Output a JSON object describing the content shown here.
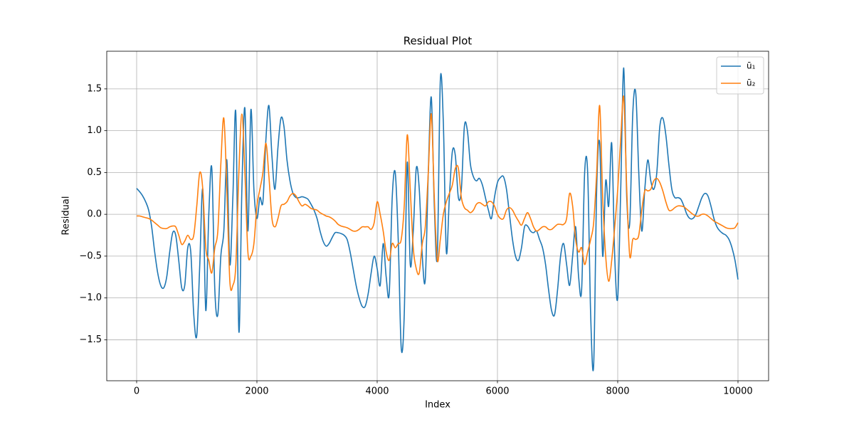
{
  "chart_data": {
    "type": "line",
    "title": "Residual Plot",
    "x_label": "Index",
    "y_label": "Residual",
    "xlim": [
      -497,
      10509
    ],
    "ylim": [
      -1.99,
      1.95
    ],
    "xticks": [
      0,
      2000,
      4000,
      6000,
      8000,
      10000
    ],
    "yticks": [
      {
        "value": -1.5,
        "label": "−1.5"
      },
      {
        "value": -1.0,
        "label": "−1.0"
      },
      {
        "value": -0.5,
        "label": "−0.5"
      },
      {
        "value": 0,
        "label": "0.0"
      },
      0.5,
      {
        "value": 1.0,
        "label": "1.0"
      },
      1.5
    ],
    "grid": true,
    "legend": "upper right",
    "x": [
      0,
      50,
      100,
      150,
      200,
      250,
      300,
      350,
      400,
      450,
      500,
      550,
      600,
      650,
      700,
      750,
      800,
      850,
      900,
      950,
      1000,
      1050,
      1100,
      1150,
      1200,
      1250,
      1300,
      1350,
      1400,
      1450,
      1500,
      1550,
      1600,
      1650,
      1700,
      1750,
      1800,
      1850,
      1900,
      1950,
      2000,
      2050,
      2100,
      2150,
      2200,
      2250,
      2300,
      2350,
      2400,
      2450,
      2500,
      2550,
      2600,
      2650,
      2700,
      2750,
      2800,
      2850,
      2900,
      2950,
      3000,
      3050,
      3100,
      3150,
      3200,
      3250,
      3300,
      3350,
      3400,
      3450,
      3500,
      3550,
      3600,
      3650,
      3700,
      3750,
      3800,
      3850,
      3900,
      3950,
      4000,
      4050,
      4100,
      4150,
      4200,
      4250,
      4300,
      4350,
      4400,
      4450,
      4500,
      4550,
      4600,
      4650,
      4700,
      4750,
      4800,
      4850,
      4900,
      4950,
      5000,
      5050,
      5100,
      5150,
      5200,
      5250,
      5300,
      5350,
      5400,
      5450,
      5500,
      5550,
      5600,
      5650,
      5700,
      5750,
      5800,
      5850,
      5900,
      5950,
      6000,
      6050,
      6100,
      6150,
      6200,
      6250,
      6300,
      6350,
      6400,
      6450,
      6500,
      6550,
      6600,
      6650,
      6700,
      6750,
      6800,
      6850,
      6900,
      6950,
      7000,
      7050,
      7100,
      7150,
      7200,
      7250,
      7300,
      7350,
      7400,
      7450,
      7500,
      7550,
      7600,
      7650,
      7700,
      7750,
      7800,
      7850,
      7900,
      7950,
      8000,
      8050,
      8100,
      8150,
      8200,
      8250,
      8300,
      8350,
      8400,
      8450,
      8500,
      8550,
      8600,
      8650,
      8700,
      8750,
      8800,
      8850,
      8900,
      8950,
      9000,
      9050,
      9100,
      9150,
      9200,
      9250,
      9300,
      9350,
      9400,
      9450,
      9500,
      9550,
      9600,
      9650,
      9700,
      9750,
      9800,
      9850,
      9900,
      9950,
      10000
    ],
    "series": [
      {
        "name": "ū₁",
        "color": "#1f77b4",
        "values": [
          0.31,
          0.27,
          0.22,
          0.15,
          0.05,
          -0.15,
          -0.45,
          -0.7,
          -0.85,
          -0.88,
          -0.75,
          -0.45,
          -0.22,
          -0.25,
          -0.55,
          -0.88,
          -0.85,
          -0.4,
          -0.45,
          -1.2,
          -1.45,
          -0.6,
          0.3,
          -1.15,
          0.0,
          0.55,
          -0.9,
          -1.2,
          -0.5,
          -0.2,
          0.65,
          -0.6,
          0.2,
          1.2,
          -1.4,
          0.3,
          1.27,
          -0.2,
          1.25,
          0.3,
          -0.05,
          0.2,
          0.15,
          0.9,
          1.3,
          0.7,
          0.3,
          0.8,
          1.15,
          1.05,
          0.65,
          0.4,
          0.25,
          0.2,
          0.2,
          0.21,
          0.2,
          0.18,
          0.12,
          0.05,
          -0.05,
          -0.2,
          -0.32,
          -0.38,
          -0.35,
          -0.28,
          -0.22,
          -0.22,
          -0.23,
          -0.25,
          -0.3,
          -0.45,
          -0.65,
          -0.85,
          -1.0,
          -1.1,
          -1.1,
          -0.95,
          -0.7,
          -0.5,
          -0.65,
          -0.85,
          -0.35,
          -0.75,
          -0.95,
          0.2,
          0.5,
          -0.3,
          -1.6,
          -1.2,
          0.62,
          -0.6,
          -0.2,
          0.55,
          0.3,
          -0.5,
          -0.78,
          0.5,
          1.4,
          0.1,
          -0.5,
          1.6,
          1.1,
          -0.45,
          0.2,
          0.75,
          0.7,
          0.2,
          0.3,
          1.05,
          1.0,
          0.6,
          0.45,
          0.4,
          0.43,
          0.35,
          0.2,
          0.05,
          -0.05,
          0.2,
          0.38,
          0.44,
          0.45,
          0.3,
          0.0,
          -0.3,
          -0.5,
          -0.55,
          -0.4,
          -0.15,
          -0.14,
          -0.2,
          -0.22,
          -0.2,
          -0.3,
          -0.4,
          -0.6,
          -0.9,
          -1.15,
          -1.2,
          -0.9,
          -0.5,
          -0.35,
          -0.6,
          -0.85,
          -0.5,
          -0.15,
          -0.75,
          -0.9,
          0.5,
          0.5,
          -1.2,
          -1.8,
          0.3,
          0.85,
          -0.5,
          0.4,
          0.1,
          0.85,
          -0.5,
          -1.0,
          0.3,
          1.75,
          0.2,
          -0.1,
          1.2,
          1.45,
          0.5,
          -0.2,
          0.3,
          0.65,
          0.4,
          0.3,
          0.5,
          1.05,
          1.15,
          0.95,
          0.6,
          0.3,
          0.2,
          0.2,
          0.18,
          0.1,
          0.0,
          -0.05,
          -0.05,
          0.0,
          0.1,
          0.2,
          0.25,
          0.22,
          0.1,
          -0.05,
          -0.15,
          -0.2,
          -0.23,
          -0.25,
          -0.3,
          -0.4,
          -0.55,
          -0.78
        ]
      },
      {
        "name": "ū₂",
        "color": "#ff7f0e",
        "values": [
          -0.02,
          -0.02,
          -0.03,
          -0.04,
          -0.05,
          -0.07,
          -0.1,
          -0.13,
          -0.16,
          -0.17,
          -0.17,
          -0.15,
          -0.14,
          -0.15,
          -0.25,
          -0.36,
          -0.32,
          -0.25,
          -0.3,
          -0.25,
          0.1,
          0.5,
          0.3,
          -0.4,
          -0.55,
          -0.7,
          -0.4,
          -0.2,
          0.6,
          1.15,
          0.3,
          -0.8,
          -0.85,
          -0.6,
          0.5,
          1.2,
          0.5,
          -0.45,
          -0.5,
          -0.35,
          0.1,
          0.3,
          0.5,
          0.85,
          0.45,
          -0.05,
          -0.15,
          -0.05,
          0.1,
          0.12,
          0.15,
          0.22,
          0.25,
          0.22,
          0.15,
          0.1,
          0.12,
          0.1,
          0.07,
          0.06,
          0.05,
          0.02,
          0.0,
          -0.02,
          -0.03,
          -0.05,
          -0.08,
          -0.12,
          -0.14,
          -0.15,
          -0.16,
          -0.18,
          -0.2,
          -0.2,
          -0.18,
          -0.15,
          -0.15,
          -0.15,
          -0.18,
          -0.1,
          0.15,
          0.0,
          -0.2,
          -0.45,
          -0.55,
          -0.35,
          -0.4,
          -0.35,
          -0.3,
          0.1,
          0.95,
          0.3,
          -0.4,
          -0.65,
          -0.7,
          -0.35,
          -0.15,
          0.5,
          1.2,
          0.2,
          -0.55,
          -0.3,
          0.0,
          0.15,
          0.25,
          0.35,
          0.55,
          0.55,
          0.2,
          0.08,
          0.05,
          0.02,
          0.05,
          0.12,
          0.14,
          0.12,
          0.1,
          0.15,
          0.15,
          0.1,
          0.0,
          -0.05,
          -0.05,
          0.05,
          0.08,
          0.05,
          -0.02,
          -0.08,
          -0.13,
          -0.05,
          0.02,
          -0.05,
          -0.15,
          -0.2,
          -0.18,
          -0.15,
          -0.15,
          -0.18,
          -0.18,
          -0.15,
          -0.12,
          -0.12,
          -0.12,
          -0.05,
          0.25,
          0.1,
          -0.3,
          -0.45,
          -0.4,
          -0.6,
          -0.45,
          -0.3,
          -0.1,
          0.5,
          1.3,
          0.2,
          -0.5,
          -0.8,
          -0.55,
          -0.15,
          0.3,
          0.9,
          1.4,
          0.3,
          -0.5,
          -0.3,
          -0.3,
          -0.25,
          0.05,
          0.28,
          0.28,
          0.3,
          0.4,
          0.43,
          0.38,
          0.28,
          0.15,
          0.05,
          0.05,
          0.08,
          0.1,
          0.1,
          0.09,
          0.06,
          0.03,
          0.0,
          -0.02,
          -0.02,
          0.0,
          0.0,
          -0.02,
          -0.05,
          -0.08,
          -0.1,
          -0.12,
          -0.14,
          -0.16,
          -0.17,
          -0.17,
          -0.16,
          -0.1
        ]
      }
    ]
  }
}
